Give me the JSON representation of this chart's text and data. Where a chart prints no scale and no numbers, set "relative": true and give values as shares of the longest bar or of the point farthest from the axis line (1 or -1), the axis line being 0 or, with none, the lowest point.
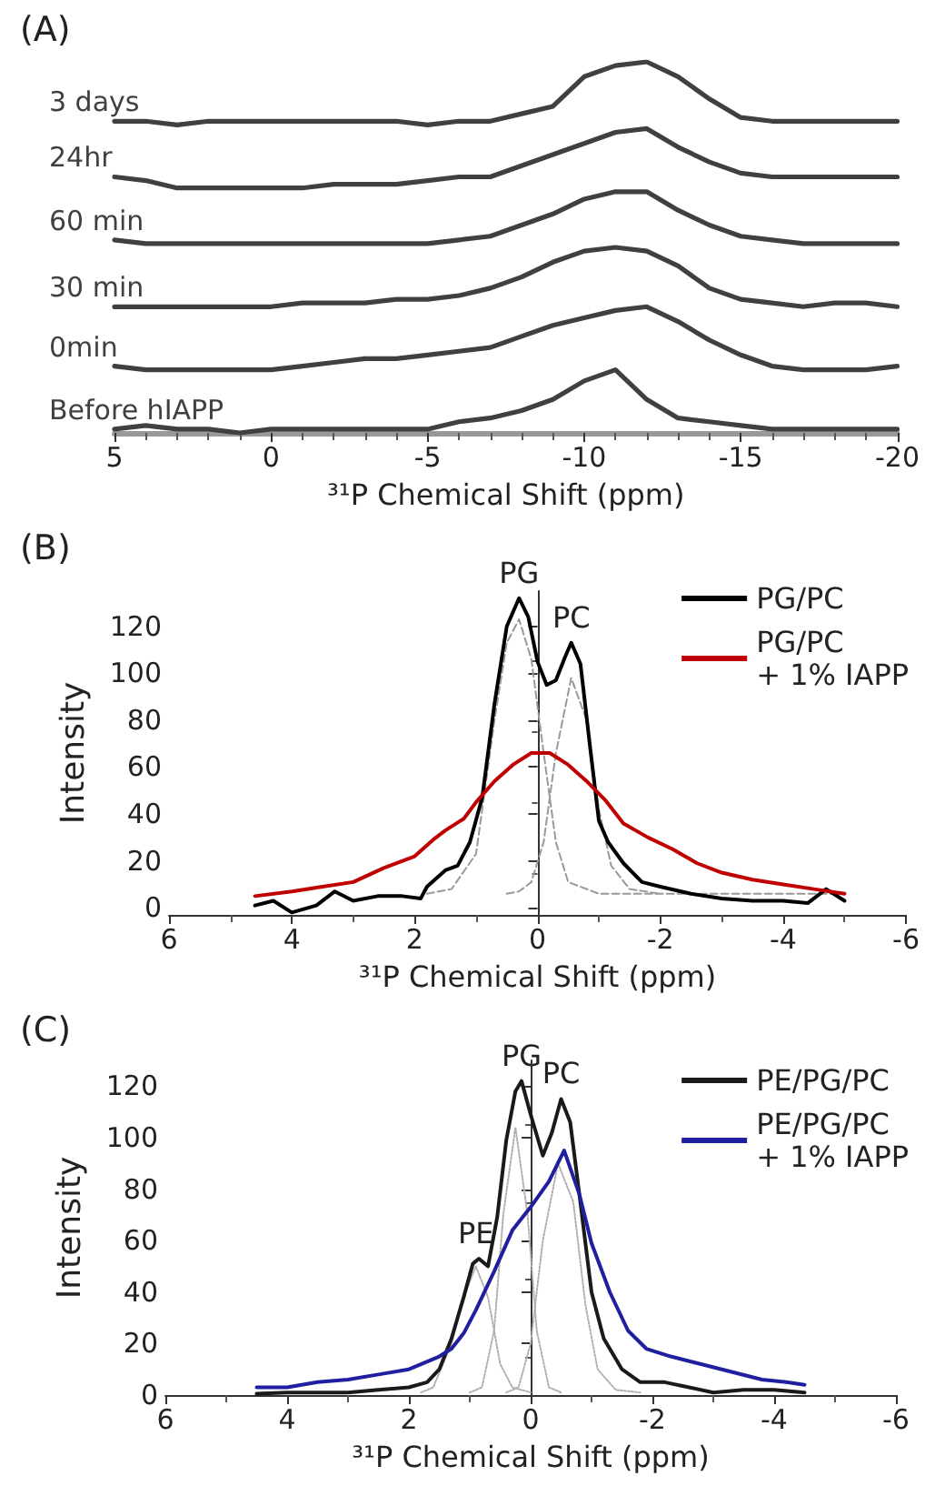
{
  "chart_data": [
    {
      "type": "line",
      "title": "(A)",
      "xlabel": "³¹P Chemical Shift (ppm)",
      "relative": true,
      "xlim": [
        5,
        -20
      ],
      "xticks": [
        5,
        0,
        -5,
        -10,
        -15,
        -20
      ],
      "legend": false,
      "marker": "none",
      "line_style": "solid",
      "x": [
        5,
        4,
        3,
        2,
        1,
        0,
        -1,
        -2,
        -3,
        -4,
        -5,
        -6,
        -7,
        -8,
        -9,
        -10,
        -11,
        -12,
        -13,
        -14,
        -15,
        -16,
        -17,
        -18,
        -19,
        -20
      ],
      "series": [
        {
          "name": "3 days",
          "color": "#404040",
          "values": [
            0.84,
            0.84,
            0.83,
            0.84,
            0.84,
            0.84,
            0.84,
            0.84,
            0.84,
            0.84,
            0.83,
            0.84,
            0.84,
            0.86,
            0.88,
            0.96,
            0.99,
            1.0,
            0.96,
            0.9,
            0.85,
            0.84,
            0.84,
            0.84,
            0.84,
            0.84
          ]
        },
        {
          "name": "24hr",
          "color": "#404040",
          "values": [
            0.69,
            0.68,
            0.66,
            0.66,
            0.66,
            0.66,
            0.66,
            0.67,
            0.67,
            0.67,
            0.68,
            0.69,
            0.69,
            0.72,
            0.75,
            0.78,
            0.81,
            0.82,
            0.77,
            0.73,
            0.7,
            0.69,
            0.69,
            0.69,
            0.69,
            0.69
          ]
        },
        {
          "name": "60 min",
          "color": "#404040",
          "values": [
            0.52,
            0.51,
            0.51,
            0.51,
            0.51,
            0.51,
            0.51,
            0.51,
            0.51,
            0.51,
            0.51,
            0.52,
            0.53,
            0.56,
            0.59,
            0.63,
            0.65,
            0.65,
            0.6,
            0.56,
            0.53,
            0.52,
            0.51,
            0.51,
            0.51,
            0.51
          ]
        },
        {
          "name": "30 min",
          "color": "#404040",
          "values": [
            0.34,
            0.34,
            0.34,
            0.34,
            0.34,
            0.34,
            0.35,
            0.35,
            0.35,
            0.36,
            0.36,
            0.37,
            0.39,
            0.42,
            0.46,
            0.49,
            0.5,
            0.49,
            0.45,
            0.39,
            0.36,
            0.35,
            0.34,
            0.35,
            0.35,
            0.34
          ]
        },
        {
          "name": "0min",
          "color": "#404040",
          "values": [
            0.18,
            0.17,
            0.17,
            0.17,
            0.17,
            0.17,
            0.18,
            0.19,
            0.2,
            0.2,
            0.21,
            0.22,
            0.23,
            0.26,
            0.29,
            0.31,
            0.33,
            0.34,
            0.3,
            0.25,
            0.21,
            0.18,
            0.17,
            0.17,
            0.17,
            0.18
          ]
        },
        {
          "name": "Before hIAPP",
          "color": "#404040",
          "values": [
            0.01,
            0.02,
            0.01,
            0.01,
            0.0,
            0.01,
            0.01,
            0.01,
            0.01,
            0.01,
            0.01,
            0.03,
            0.04,
            0.06,
            0.09,
            0.14,
            0.17,
            0.09,
            0.04,
            0.03,
            0.02,
            0.01,
            0.01,
            0.01,
            0.01,
            0.01
          ]
        }
      ]
    },
    {
      "type": "line",
      "title": "(B)",
      "xlabel": "³¹P Chemical Shift (ppm)",
      "ylabel": "Intensity",
      "xlim": [
        6,
        -6
      ],
      "xticks": [
        6,
        4,
        2,
        0,
        -2,
        -4,
        -6
      ],
      "ylim": [
        -3,
        135
      ],
      "yticks": [
        0,
        20,
        40,
        60,
        80,
        100,
        120
      ],
      "legend": "top right",
      "marker": "none",
      "line_style": "solid",
      "annotations": [
        {
          "text": "PG",
          "x": 0.3,
          "y": 132
        },
        {
          "text": "PC",
          "x": -0.55,
          "y": 113
        }
      ],
      "series": [
        {
          "name": "PG/PC",
          "color": "#000000",
          "x": [
            4.6,
            4.3,
            4.0,
            3.6,
            3.3,
            3.0,
            2.6,
            2.2,
            1.9,
            1.8,
            1.5,
            1.3,
            1.1,
            0.9,
            0.7,
            0.5,
            0.3,
            0.15,
            0.0,
            -0.15,
            -0.3,
            -0.45,
            -0.55,
            -0.7,
            -0.85,
            -1.0,
            -1.15,
            -1.4,
            -1.7,
            -2.0,
            -2.5,
            -3.0,
            -3.5,
            -4.0,
            -4.4,
            -4.7,
            -5.0
          ],
          "values": [
            1,
            3,
            -2,
            1,
            7,
            3,
            5,
            5,
            4,
            9,
            16,
            18,
            28,
            47,
            87,
            120,
            132,
            124,
            105,
            95,
            97,
            107,
            113,
            104,
            70,
            37,
            28,
            19,
            11,
            9,
            6,
            4,
            3,
            3,
            2,
            8,
            3
          ]
        },
        {
          "name": "PG/PC + 1% IAPP",
          "color": "#c00000",
          "x": [
            4.6,
            4.0,
            3.5,
            3.0,
            2.5,
            2.0,
            1.7,
            1.5,
            1.2,
            1.0,
            0.7,
            0.4,
            0.1,
            -0.2,
            -0.5,
            -0.8,
            -1.1,
            -1.4,
            -1.8,
            -2.2,
            -2.6,
            -3.0,
            -3.5,
            -4.0,
            -4.5,
            -5.0
          ],
          "values": [
            5,
            7,
            9,
            11,
            17,
            22,
            29,
            33,
            38,
            45,
            54,
            61,
            66,
            66,
            61,
            54,
            46,
            36,
            30,
            25,
            19,
            15,
            12,
            10,
            8,
            6
          ]
        },
        {
          "color": "#999999",
          "line_style": "dashed",
          "x": [
            1.8,
            1.4,
            1.0,
            0.7,
            0.5,
            0.3,
            0.1,
            -0.1,
            -0.3,
            -0.5,
            -1.0,
            -2.0,
            -3.0,
            -4.0,
            -5.0
          ],
          "values": [
            6,
            8,
            23,
            80,
            113,
            123,
            106,
            66,
            28,
            11,
            6,
            6,
            6,
            6,
            6
          ]
        },
        {
          "color": "#999999",
          "line_style": "dashed",
          "x": [
            0.5,
            0.3,
            0.1,
            -0.1,
            -0.3,
            -0.55,
            -0.8,
            -1.0,
            -1.2,
            -1.5,
            -2.0
          ],
          "values": [
            6,
            7,
            11,
            28,
            66,
            98,
            80,
            42,
            18,
            8,
            6
          ]
        }
      ]
    },
    {
      "type": "line",
      "title": "(C)",
      "xlabel": "³¹P Chemical Shift (ppm)",
      "ylabel": "Intensity",
      "xlim": [
        6,
        -6
      ],
      "xticks": [
        6,
        4,
        2,
        0,
        -2,
        -4,
        -6
      ],
      "ylim": [
        0,
        130
      ],
      "yticks": [
        0,
        20,
        40,
        60,
        80,
        100,
        120
      ],
      "legend": "top right",
      "marker": "none",
      "line_style": "solid",
      "annotations": [
        {
          "text": "PE",
          "x": 0.9,
          "y": 53
        },
        {
          "text": "PG",
          "x": 0.15,
          "y": 122
        },
        {
          "text": "PC",
          "x": -0.5,
          "y": 115
        }
      ],
      "series": [
        {
          "name": "PE/PG/PC",
          "color": "#1a1a1a",
          "x": [
            4.5,
            4.0,
            3.5,
            3.0,
            2.5,
            2.0,
            1.7,
            1.5,
            1.3,
            1.1,
            0.95,
            0.85,
            0.7,
            0.55,
            0.4,
            0.25,
            0.15,
            0.0,
            -0.2,
            -0.35,
            -0.5,
            -0.65,
            -0.8,
            -1.0,
            -1.2,
            -1.5,
            -1.8,
            -2.2,
            -2.6,
            -3.0,
            -3.5,
            -4.0,
            -4.5
          ],
          "values": [
            0.5,
            1,
            1,
            1,
            2,
            3,
            5,
            10,
            22,
            38,
            51,
            53,
            50,
            69,
            99,
            118,
            122,
            109,
            93,
            102,
            115,
            106,
            78,
            40,
            22,
            10,
            5,
            5,
            3,
            1,
            2,
            2,
            1
          ]
        },
        {
          "name": "PE/PG/PC + 1% IAPP",
          "color": "#1f1fa0",
          "x": [
            4.5,
            4.0,
            3.5,
            3.0,
            2.5,
            2.0,
            1.5,
            1.3,
            1.1,
            0.9,
            0.6,
            0.3,
            0.0,
            -0.3,
            -0.55,
            -0.8,
            -1.0,
            -1.3,
            -1.6,
            -1.9,
            -2.3,
            -2.8,
            -3.3,
            -3.8,
            -4.2,
            -4.5
          ],
          "values": [
            3,
            3,
            5,
            6,
            8,
            10,
            15,
            18,
            24,
            33,
            48,
            64,
            73,
            83,
            95,
            78,
            59,
            40,
            25,
            18,
            15,
            12,
            9,
            6,
            5,
            4
          ]
        },
        {
          "color": "#b0b0b0",
          "line_style": "dotted",
          "x": [
            1.8,
            1.6,
            1.3,
            1.1,
            0.9,
            0.7,
            0.5,
            0.3,
            0.0
          ],
          "values": [
            1,
            3,
            20,
            38,
            50,
            38,
            12,
            3,
            1
          ]
        },
        {
          "color": "#b0b0b0",
          "line_style": "dotted",
          "x": [
            1.0,
            0.8,
            0.6,
            0.45,
            0.25,
            0.05,
            -0.1,
            -0.3,
            -0.5
          ],
          "values": [
            1,
            3,
            25,
            70,
            104,
            70,
            25,
            3,
            1
          ]
        },
        {
          "color": "#b0b0b0",
          "line_style": "dotted",
          "x": [
            0.4,
            0.2,
            0.0,
            -0.2,
            -0.45,
            -0.7,
            -0.9,
            -1.1,
            -1.4,
            -1.8
          ],
          "values": [
            1,
            3,
            20,
            60,
            90,
            75,
            35,
            10,
            2,
            1
          ]
        }
      ]
    }
  ]
}
